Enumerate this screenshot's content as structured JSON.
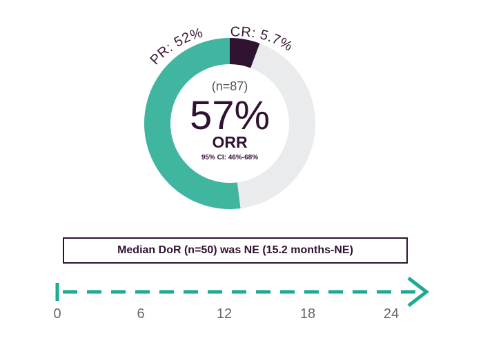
{
  "chart_data": {
    "type": "pie",
    "variant": "donut",
    "slices": [
      {
        "label": "CR: 5.7%",
        "value": 5.7,
        "color": "#2f1230"
      },
      {
        "label": "PR: 52%",
        "value": 52,
        "color": "#40b5a0"
      }
    ],
    "remainder_color": "#e9ebec",
    "center": {
      "n_label": "(n=87)",
      "value_label": "57%",
      "metric_label": "ORR",
      "ci_label": "95% CI: 46%-68%"
    }
  },
  "dor": {
    "label": "Median DoR (n=50) was NE (15.2 months-NE)"
  },
  "timeline": {
    "ticks": [
      "0",
      "6",
      "12",
      "18",
      "24"
    ],
    "tick_values": [
      0,
      6,
      12,
      18,
      24
    ],
    "color": "#1aab92"
  }
}
